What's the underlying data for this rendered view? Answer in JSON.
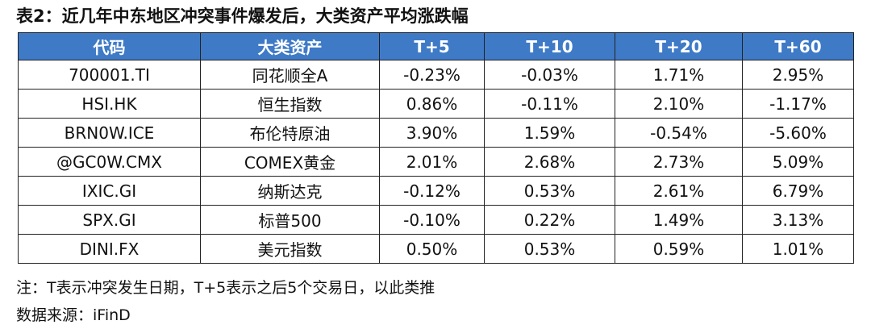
{
  "title": "表2：近几年中东地区冲突事件爆发后，大类资产平均涨跌幅",
  "table": {
    "header": [
      "代码",
      "大类资产",
      "T+5",
      "T+10",
      "T+20",
      "T+60"
    ],
    "rows": [
      [
        "700001.TI",
        "同花顺全A",
        "-0.23%",
        "-0.03%",
        "1.71%",
        "2.95%"
      ],
      [
        "HSI.HK",
        "恒生指数",
        "0.86%",
        "-0.11%",
        "2.10%",
        "-1.17%"
      ],
      [
        "BRN0W.ICE",
        "布伦特原油",
        "3.90%",
        "1.59%",
        "-0.54%",
        "-5.60%"
      ],
      [
        "@GC0W.CMX",
        "COMEX黄金",
        "2.01%",
        "2.68%",
        "2.73%",
        "5.09%"
      ],
      [
        "IXIC.GI",
        "纳斯达克",
        "-0.12%",
        "0.53%",
        "2.61%",
        "6.79%"
      ],
      [
        "SPX.GI",
        "标普500",
        "-0.10%",
        "0.22%",
        "1.49%",
        "3.13%"
      ],
      [
        "DINI.FX",
        "美元指数",
        "0.50%",
        "0.53%",
        "0.59%",
        "1.01%"
      ]
    ]
  },
  "notes": [
    "注：T表示冲突发生日期，T+5表示之后5个交易日，以此类推",
    "数据来源：iFinD"
  ]
}
